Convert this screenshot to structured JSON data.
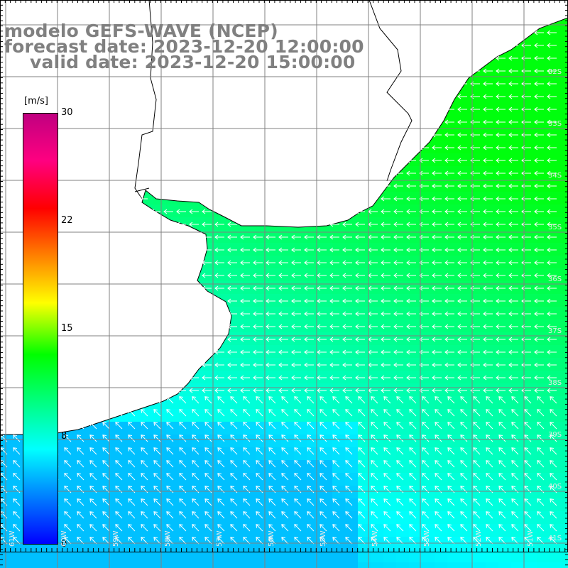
{
  "title": {
    "line1": "modelo GEFS-WAVE (NCEP)",
    "line2": "forecast date: 2023-12-20 12:00:00",
    "line3": "valid date: 2023-12-20 15:00:00"
  },
  "legend": {
    "unit": "[m/s]",
    "ticks": [
      {
        "label": "30",
        "value": 30
      },
      {
        "label": "22",
        "value": 22
      },
      {
        "label": "15",
        "value": 15
      },
      {
        "label": "8",
        "value": 8
      },
      {
        "label": "0",
        "value": 0
      }
    ],
    "colors": [
      "#0000ff",
      "#0080ff",
      "#00ffff",
      "#00ff80",
      "#00ff00",
      "#ffff00",
      "#ff8000",
      "#ff0000",
      "#ff0080",
      "#c00080"
    ]
  },
  "lat_labels": [
    "32S",
    "33S",
    "34S",
    "35S",
    "36S",
    "37S",
    "38S",
    "39S",
    "40S",
    "41S"
  ],
  "lon_labels": [
    "61W",
    "60W",
    "59W",
    "58W",
    "57W",
    "56W",
    "55W",
    "54W",
    "53W",
    "52W",
    "51W"
  ],
  "colors": {
    "land": "#ffffff",
    "coast": "#000000",
    "grid": "#808080",
    "arrow": "#ffffff",
    "title": "#808080"
  },
  "field_description_levels": {
    "north_east": 11.5,
    "middle": 9.5,
    "south": 6.5
  }
}
